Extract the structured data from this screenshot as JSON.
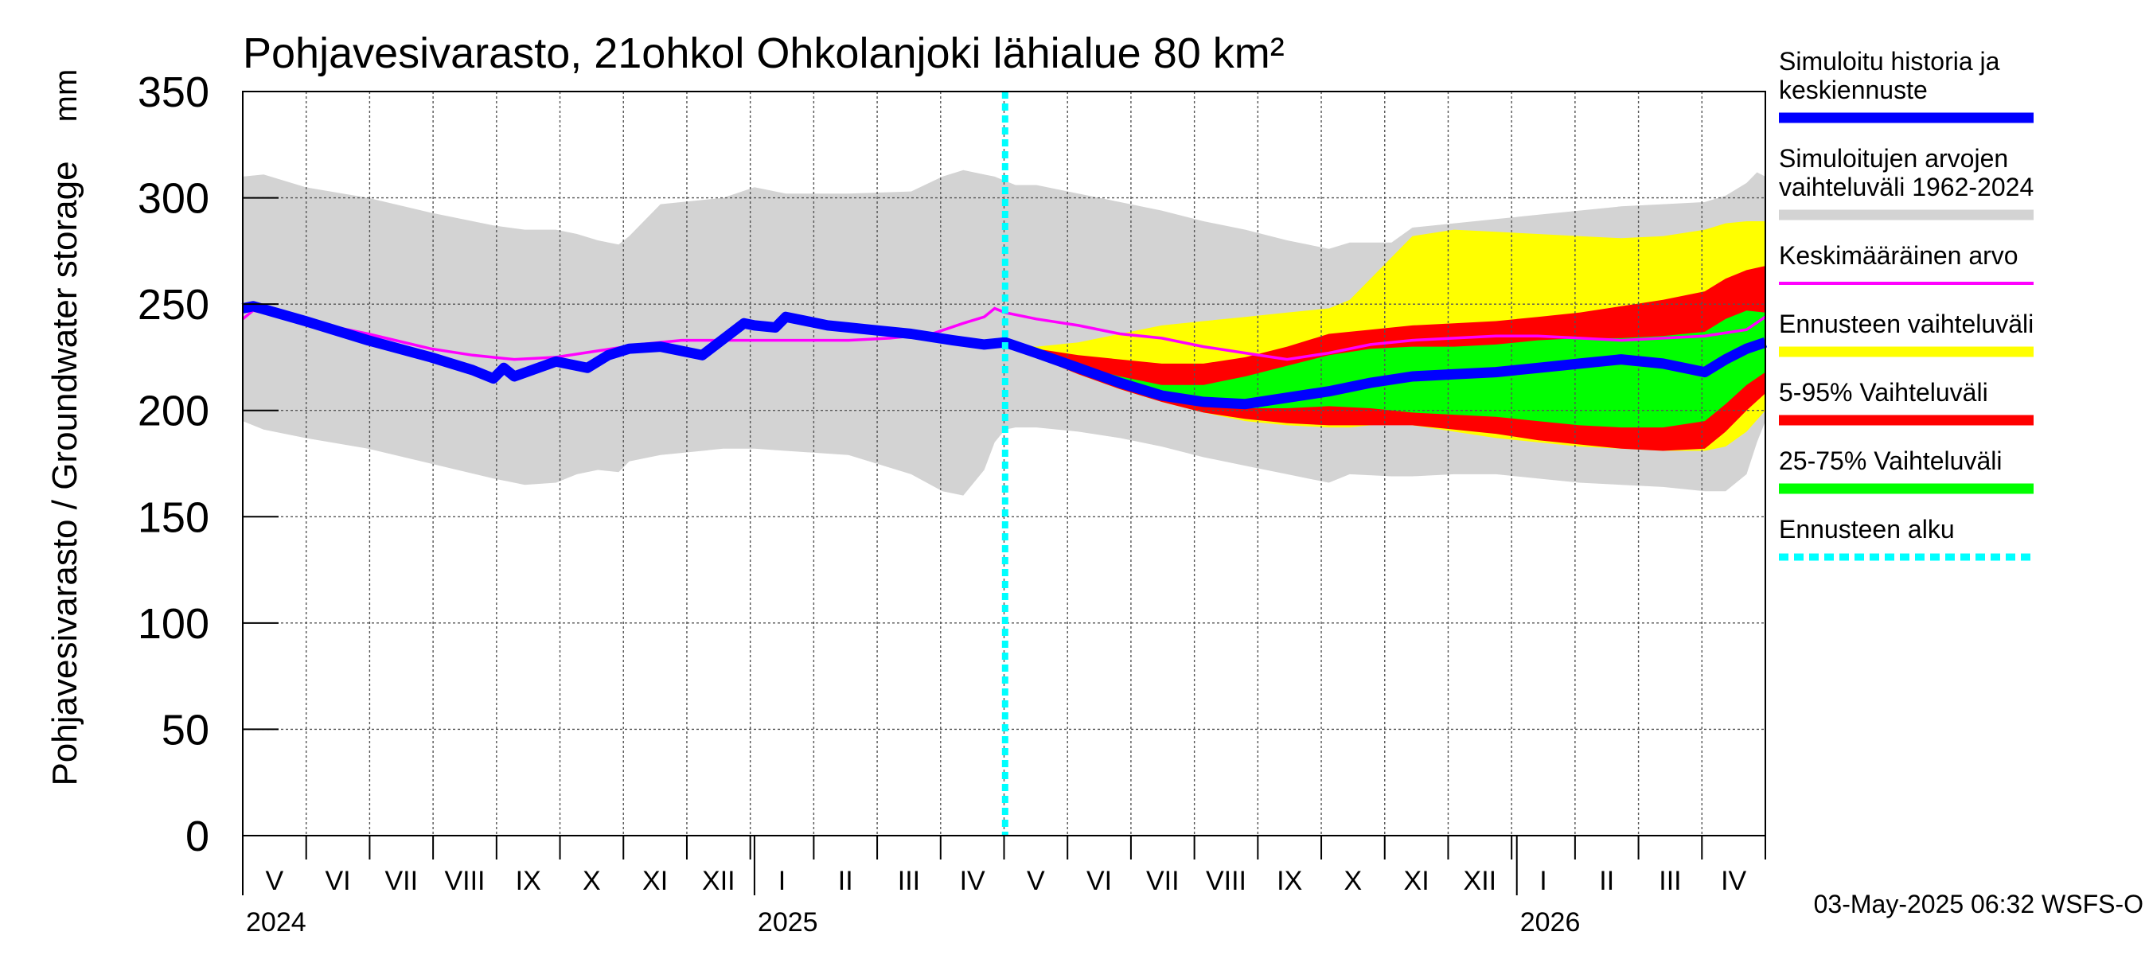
{
  "chart_data": {
    "type": "area",
    "title": "Pohjavesivarasto, 21ohkol Ohkolanjoki lähialue 80 km²",
    "ylabel": "Pohjavesivarasto / Groundwater storage",
    "yunit": "mm",
    "ylim": [
      0,
      350
    ],
    "yticks": [
      "0",
      "50",
      "100",
      "150",
      "200",
      "250",
      "300",
      "350"
    ],
    "x_range_days": [
      0,
      729
    ],
    "months": [
      "V",
      "VI",
      "VII",
      "VIII",
      "IX",
      "X",
      "XI",
      "XII",
      "I",
      "II",
      "III",
      "IV",
      "V",
      "VI",
      "VII",
      "VIII",
      "IX",
      "X",
      "XI",
      "XII",
      "I",
      "II",
      "III",
      "IV"
    ],
    "years": [
      {
        "label": "2024",
        "day": 0
      },
      {
        "label": "2025",
        "day": 245
      },
      {
        "label": "2026",
        "day": 610
      }
    ],
    "forecast_start_day": 365,
    "legend": [
      {
        "label": "Simuloitu historia ja keskiennuste",
        "color": "#0000ff",
        "style": "thick"
      },
      {
        "label": "Simuloitujen arvojen vaihteluväli 1962-2024",
        "color": "#d3d3d3",
        "style": "thick"
      },
      {
        "label": "Keskimääräinen arvo",
        "color": "#ff00ff",
        "style": "thin"
      },
      {
        "label": "Ennusteen vaihteluväli",
        "color": "#ffff00",
        "style": "thick"
      },
      {
        "label": "5-95% Vaihteluväli",
        "color": "#ff0000",
        "style": "thick"
      },
      {
        "label": "25-75% Vaihteluväli",
        "color": "#00ff00",
        "style": "thick"
      },
      {
        "label": "Ennusteen alku",
        "color": "#00ffff",
        "style": "dashed"
      }
    ],
    "timestamp": "03-May-2025 06:32 WSFS-O",
    "series": {
      "hist_range": {
        "name": "Simuloitujen arvojen vaihteluväli 1962-2024",
        "x": [
          0,
          10,
          30,
          60,
          90,
          120,
          135,
          150,
          160,
          170,
          180,
          185,
          200,
          230,
          245,
          260,
          290,
          320,
          335,
          345,
          355,
          360,
          365,
          370,
          380,
          400,
          420,
          440,
          460,
          480,
          500,
          510,
          520,
          530,
          550,
          560,
          580,
          600,
          620,
          640,
          660,
          680,
          700,
          710,
          720,
          725,
          729
        ],
        "lower": [
          195,
          191,
          187,
          182,
          175,
          168,
          165,
          166,
          170,
          172,
          171,
          176,
          179,
          182,
          182,
          181,
          179,
          170,
          162,
          160,
          172,
          185,
          191,
          192,
          192,
          190,
          187,
          183,
          178,
          174,
          170,
          168,
          166,
          170,
          169,
          169,
          170,
          170,
          168,
          166,
          165,
          164,
          162,
          162,
          170,
          185,
          195
        ],
        "upper": [
          310,
          311,
          305,
          300,
          293,
          287,
          285,
          285,
          283,
          280,
          278,
          282,
          297,
          300,
          305,
          302,
          302,
          303,
          310,
          313,
          311,
          310,
          308,
          306,
          306,
          302,
          298,
          294,
          289,
          285,
          280,
          278,
          276,
          279,
          279,
          286,
          288,
          290,
          292,
          294,
          296,
          297,
          298,
          301,
          307,
          312,
          310
        ]
      },
      "forecast_range": {
        "name": "Ennusteen vaihteluväli",
        "x": [
          365,
          380,
          400,
          420,
          440,
          460,
          480,
          500,
          520,
          530,
          540,
          550,
          560,
          580,
          600,
          620,
          640,
          660,
          680,
          700,
          710,
          720,
          729
        ],
        "lower": [
          232,
          225,
          217,
          210,
          204,
          199,
          195,
          193,
          192,
          192,
          193,
          194,
          193,
          190,
          187,
          185,
          183,
          182,
          181,
          181,
          183,
          190,
          200
        ],
        "upper": [
          232,
          230,
          232,
          236,
          240,
          242,
          244,
          246,
          248,
          252,
          262,
          272,
          282,
          285,
          284,
          283,
          282,
          281,
          282,
          285,
          288,
          289,
          289
        ]
      },
      "p5_95": {
        "name": "5-95% Vaihteluväli",
        "x": [
          365,
          380,
          400,
          420,
          440,
          460,
          480,
          500,
          520,
          540,
          560,
          580,
          600,
          620,
          640,
          660,
          680,
          700,
          710,
          720,
          729
        ],
        "lower": [
          232,
          225,
          217,
          210,
          204,
          199,
          196,
          194,
          193,
          193,
          193,
          191,
          189,
          186,
          184,
          182,
          181,
          182,
          190,
          200,
          208
        ],
        "upper": [
          232,
          229,
          226,
          224,
          222,
          222,
          225,
          230,
          236,
          238,
          240,
          241,
          242,
          244,
          246,
          249,
          252,
          256,
          262,
          266,
          268
        ]
      },
      "p25_75": {
        "name": "25-75% Vaihteluväli",
        "x": [
          365,
          380,
          400,
          420,
          440,
          460,
          480,
          500,
          520,
          540,
          560,
          580,
          600,
          620,
          640,
          660,
          680,
          700,
          710,
          720,
          729
        ],
        "lower": [
          232,
          226,
          218,
          211,
          205,
          202,
          201,
          201,
          202,
          201,
          199,
          198,
          197,
          195,
          193,
          192,
          192,
          195,
          203,
          212,
          218
        ],
        "upper": [
          232,
          227,
          221,
          216,
          212,
          212,
          216,
          221,
          226,
          229,
          230,
          230,
          231,
          233,
          234,
          234,
          235,
          237,
          243,
          247,
          246
        ]
      },
      "mean": {
        "name": "Keskimääräinen arvo",
        "x": [
          0,
          5,
          30,
          60,
          90,
          110,
          130,
          150,
          170,
          190,
          210,
          230,
          250,
          270,
          290,
          310,
          330,
          345,
          355,
          360,
          365,
          380,
          400,
          420,
          440,
          460,
          480,
          500,
          520,
          540,
          560,
          580,
          600,
          620,
          640,
          660,
          680,
          700,
          720,
          729
        ],
        "y": [
          243,
          247,
          242,
          236,
          229,
          226,
          224,
          225,
          228,
          231,
          233,
          233,
          233,
          233,
          233,
          234,
          236,
          241,
          244,
          248,
          246,
          243,
          240,
          236,
          234,
          230,
          227,
          224,
          227,
          231,
          233,
          234,
          235,
          235,
          234,
          233,
          234,
          235,
          238,
          244
        ]
      },
      "sim_history": {
        "name": "Simuloitu historia ja keskiennuste",
        "x": [
          0,
          5,
          30,
          60,
          90,
          110,
          120,
          125,
          130,
          150,
          165,
          175,
          185,
          200,
          220,
          240,
          245,
          255,
          260,
          270,
          280,
          290,
          300,
          320,
          340,
          355,
          365,
          380,
          400,
          420,
          440,
          460,
          480,
          500,
          520,
          540,
          560,
          580,
          600,
          620,
          640,
          660,
          680,
          700,
          710,
          720,
          729
        ],
        "y": [
          248,
          249,
          242,
          233,
          225,
          219,
          215,
          220,
          216,
          223,
          220,
          226,
          229,
          230,
          226,
          241,
          240,
          239,
          244,
          242,
          240,
          239,
          238,
          236,
          233,
          231,
          232,
          227,
          220,
          213,
          207,
          204,
          203,
          206,
          209,
          213,
          216,
          217,
          218,
          220,
          222,
          224,
          222,
          218,
          224,
          229,
          232
        ]
      }
    }
  }
}
